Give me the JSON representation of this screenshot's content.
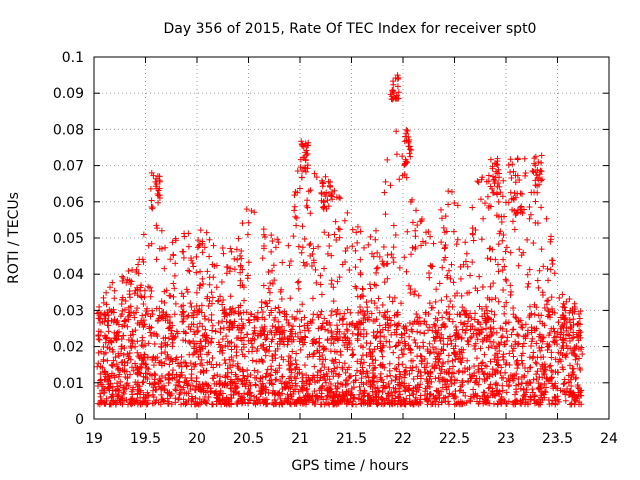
{
  "chart_data": {
    "type": "scatter",
    "title": "Day 356 of 2015, Rate Of TEC Index for receiver spt0",
    "xlabel": "GPS time / hours",
    "ylabel": "ROTI / TECUs",
    "xlim": [
      19,
      24
    ],
    "ylim": [
      0,
      0.1
    ],
    "x_ticks": [
      "19",
      "19.5",
      "20",
      "20.5",
      "21",
      "21.5",
      "22",
      "22.5",
      "23",
      "23.5",
      "24"
    ],
    "y_ticks": [
      "0",
      "0.01",
      "0.02",
      "0.03",
      "0.04",
      "0.05",
      "0.06",
      "0.07",
      "0.08",
      "0.09",
      "0.1"
    ],
    "grid": true,
    "marker": "+",
    "series_color": "#ff0000",
    "series": [
      {
        "name": "ROTI",
        "x_range": [
          19.03,
          23.74
        ],
        "baseline_band": [
          0.004,
          0.03
        ],
        "envelope": [
          [
            19.03,
            0.03
          ],
          [
            19.2,
            0.04
          ],
          [
            19.3,
            0.041
          ],
          [
            19.45,
            0.046
          ],
          [
            19.6,
            0.068
          ],
          [
            19.7,
            0.048
          ],
          [
            19.85,
            0.052
          ],
          [
            20.0,
            0.056
          ],
          [
            20.2,
            0.048
          ],
          [
            20.4,
            0.05
          ],
          [
            20.5,
            0.06
          ],
          [
            20.7,
            0.052
          ],
          [
            20.9,
            0.05
          ],
          [
            21.0,
            0.077
          ],
          [
            21.1,
            0.07
          ],
          [
            21.3,
            0.066
          ],
          [
            21.5,
            0.055
          ],
          [
            21.7,
            0.05
          ],
          [
            21.8,
            0.058
          ],
          [
            21.92,
            0.095
          ],
          [
            22.0,
            0.08
          ],
          [
            22.1,
            0.06
          ],
          [
            22.3,
            0.052
          ],
          [
            22.45,
            0.066
          ],
          [
            22.6,
            0.055
          ],
          [
            22.7,
            0.065
          ],
          [
            22.9,
            0.072
          ],
          [
            23.05,
            0.073
          ],
          [
            23.2,
            0.072
          ],
          [
            23.3,
            0.073
          ],
          [
            23.4,
            0.058
          ],
          [
            23.55,
            0.035
          ],
          [
            23.74,
            0.03
          ]
        ],
        "clusters": [
          {
            "x": [
              19.55,
              19.64
            ],
            "y": [
              0.058,
              0.068
            ]
          },
          {
            "x": [
              21.0,
              21.08
            ],
            "y": [
              0.068,
              0.077
            ]
          },
          {
            "x": [
              21.2,
              21.32
            ],
            "y": [
              0.058,
              0.066
            ]
          },
          {
            "x": [
              21.88,
              21.96
            ],
            "y": [
              0.088,
              0.095
            ]
          },
          {
            "x": [
              22.0,
              22.08
            ],
            "y": [
              0.07,
              0.08
            ]
          },
          {
            "x": [
              22.85,
              22.95
            ],
            "y": [
              0.062,
              0.072
            ]
          },
          {
            "x": [
              23.05,
              23.15
            ],
            "y": [
              0.056,
              0.073
            ]
          },
          {
            "x": [
              23.25,
              23.35
            ],
            "y": [
              0.062,
              0.073
            ]
          }
        ]
      }
    ]
  }
}
